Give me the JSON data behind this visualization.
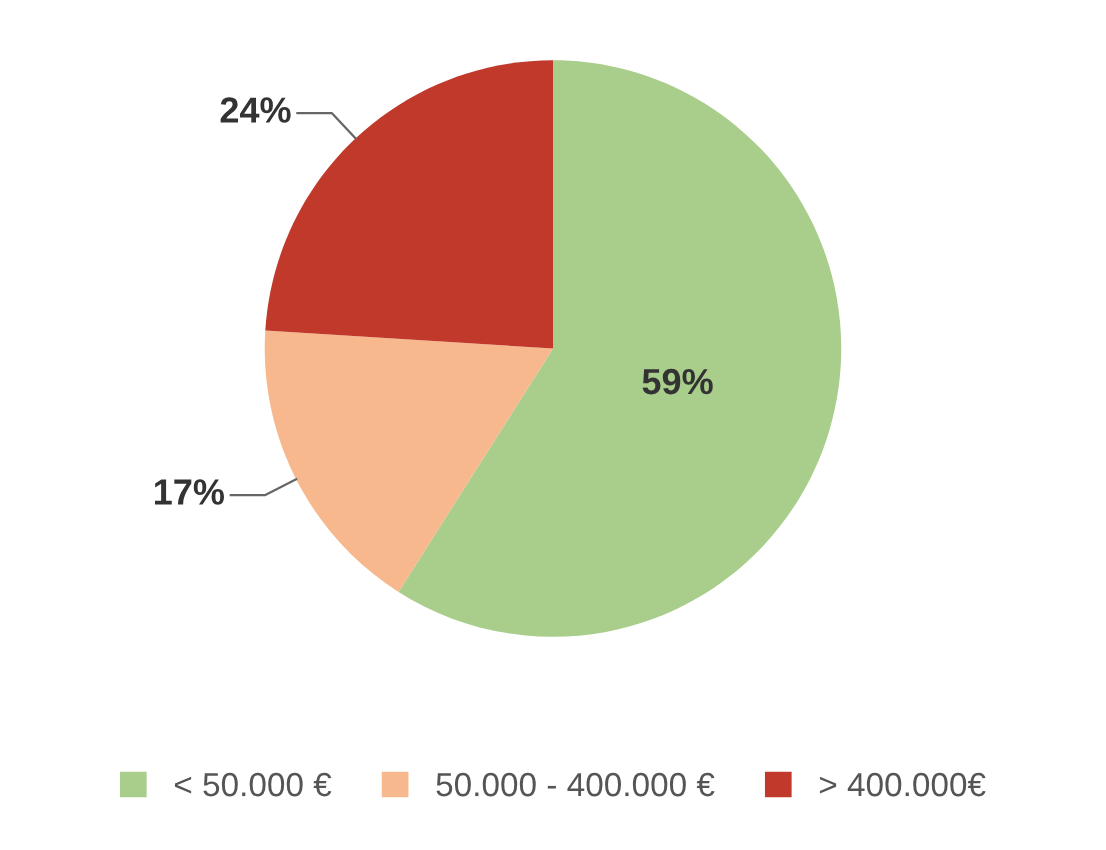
{
  "chart_data": {
    "type": "pie",
    "categories": [
      "< 50.000 €",
      "50.000 - 400.000 €",
      "> 400.000€"
    ],
    "values": [
      59,
      17,
      24
    ],
    "colors": [
      "#a9cd8b",
      "#f7b88e",
      "#c0392b"
    ],
    "value_labels": [
      "59%",
      "17%",
      "24%"
    ],
    "legend": "bottom"
  }
}
